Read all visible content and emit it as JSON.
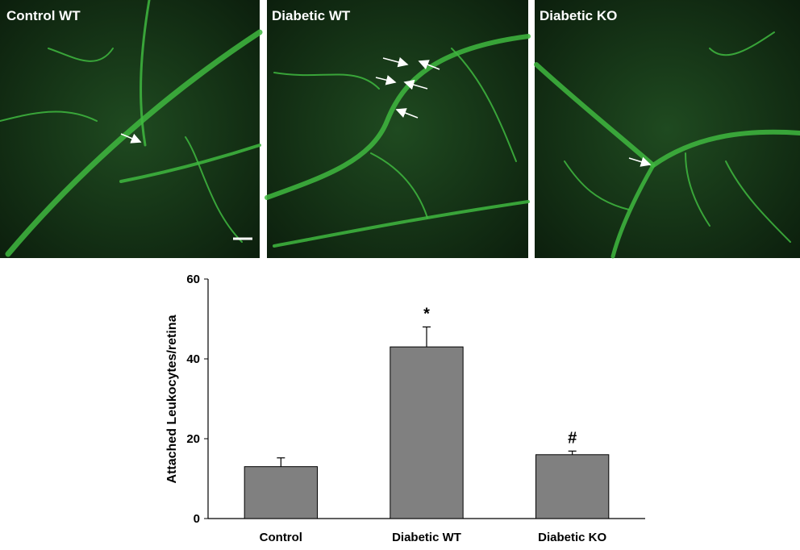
{
  "panels": [
    "Control WT",
    "Diabetic WT",
    "Diabetic KO"
  ],
  "chart_data": {
    "type": "bar",
    "ylabel": "Attached Leukocytes/retina",
    "categories": [
      "Control",
      "Diabetic WT",
      "Diabetic KO"
    ],
    "values": [
      13,
      43,
      16
    ],
    "errors": [
      2.2,
      5,
      0.9
    ],
    "annotations": [
      {
        "category": "Diabetic WT",
        "text": "*"
      },
      {
        "category": "Diabetic KO",
        "text": "#"
      }
    ],
    "color": "#808080",
    "ylim": [
      0,
      60
    ],
    "yticks": [
      0,
      20,
      40,
      60
    ],
    "grid": false
  }
}
